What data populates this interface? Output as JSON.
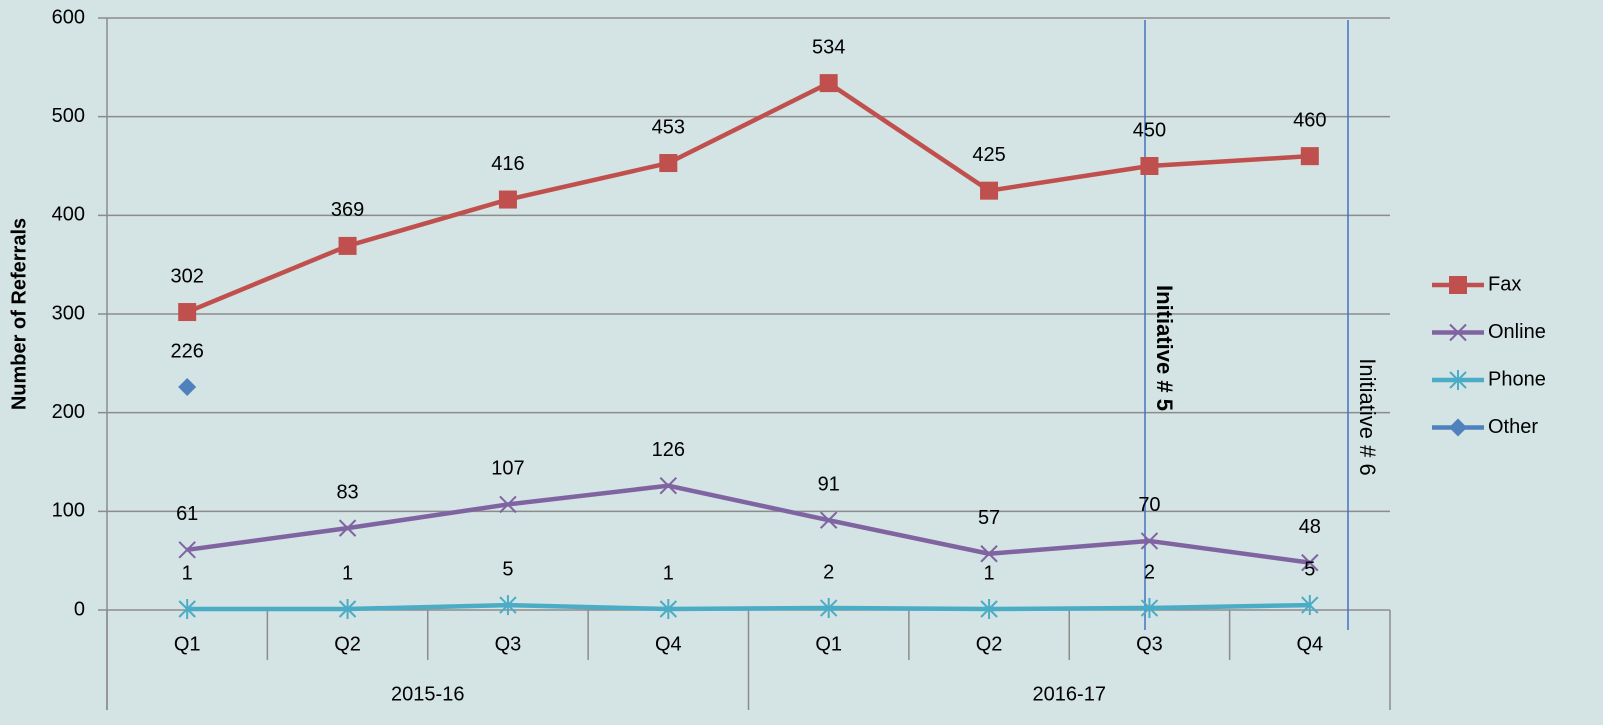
{
  "chart_data": {
    "type": "line",
    "ylabel": "Number of Referrals",
    "categories": [
      "Q1",
      "Q2",
      "Q3",
      "Q4",
      "Q1",
      "Q2",
      "Q3",
      "Q4"
    ],
    "category_groups": [
      "2015-16",
      "2016-17"
    ],
    "series": [
      {
        "name": "Fax",
        "color": "#c0504d",
        "marker": "square",
        "values": [
          302,
          369,
          416,
          453,
          534,
          425,
          450,
          460
        ]
      },
      {
        "name": "Online",
        "color": "#8064a2",
        "marker": "x",
        "values": [
          61,
          83,
          107,
          126,
          91,
          57,
          70,
          48
        ]
      },
      {
        "name": "Phone",
        "color": "#4bacc6",
        "marker": "star",
        "values": [
          1,
          1,
          5,
          1,
          2,
          1,
          2,
          5
        ]
      },
      {
        "name": "Other",
        "color": "#4f81bd",
        "marker": "diamond",
        "values": [
          226,
          null,
          null,
          null,
          null,
          null,
          null,
          null
        ]
      }
    ],
    "annotations": [
      {
        "text": "Initiative # 5",
        "bold": true
      },
      {
        "text": "Initiative # 6",
        "bold": false
      }
    ],
    "ylim": [
      0,
      600
    ],
    "yticks": [
      0,
      100,
      200,
      300,
      400,
      500,
      600
    ],
    "grid": true,
    "legend": "right"
  }
}
